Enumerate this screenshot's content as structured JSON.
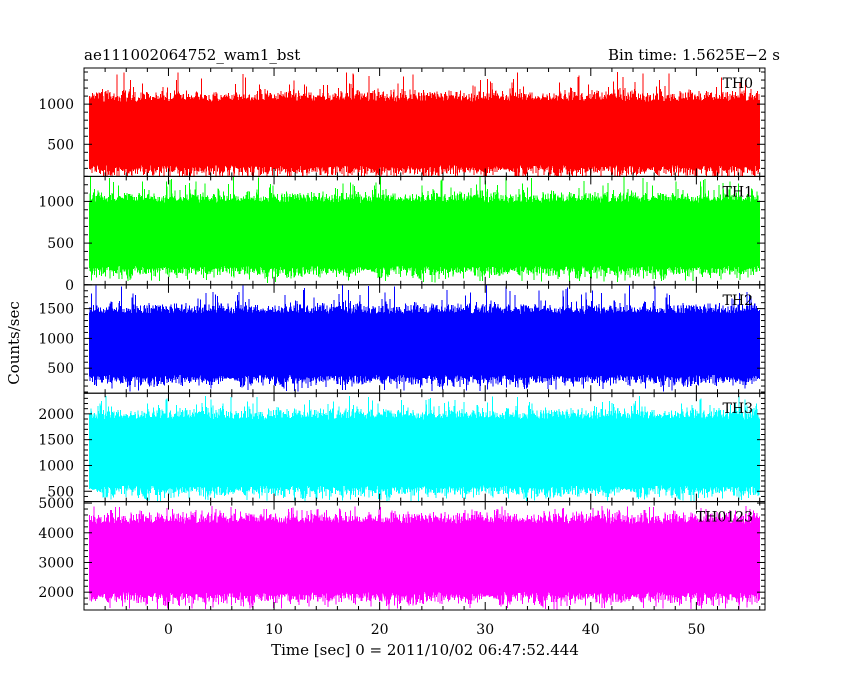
{
  "header": {
    "title": "ae111002064752_wam1_bst",
    "bin_time": "Bin time: 1.5625E−2 s"
  },
  "axes": {
    "xlabel": "Time [sec] 0 = 2011/10/02 06:47:52.444",
    "ylabel": "Counts/sec",
    "x_ticks": [
      0,
      10,
      20,
      30,
      40,
      50
    ],
    "xlim": [
      -8,
      56.5
    ],
    "data_x_range": [
      -7.5,
      56
    ]
  },
  "chart_data": [
    {
      "type": "area",
      "panel": "TH0",
      "series": [
        {
          "name": "TH0",
          "color": "#ff0000",
          "mean": 650,
          "band": [
            170,
            1100
          ],
          "min": 50,
          "max": 1400
        }
      ],
      "ylim": [
        100,
        1450
      ],
      "y_ticks": [
        500,
        1000
      ],
      "grid": false
    },
    {
      "type": "area",
      "panel": "TH1",
      "series": [
        {
          "name": "TH1",
          "color": "#00ff00",
          "mean": 620,
          "band": [
            160,
            1050
          ],
          "min": 20,
          "max": 1300
        }
      ],
      "ylim": [
        0,
        1300
      ],
      "y_ticks": [
        0,
        500,
        1000
      ],
      "grid": false
    },
    {
      "type": "area",
      "panel": "TH2",
      "series": [
        {
          "name": "TH2",
          "color": "#0000ff",
          "mean": 800,
          "band": [
            300,
            1500
          ],
          "min": 100,
          "max": 1900
        }
      ],
      "ylim": [
        80,
        1900
      ],
      "y_ticks": [
        500,
        1000,
        1500
      ],
      "grid": false
    },
    {
      "type": "area",
      "panel": "TH3",
      "series": [
        {
          "name": "TH3",
          "color": "#00ffff",
          "mean": 1200,
          "band": [
            500,
            2000
          ],
          "min": 300,
          "max": 2350
        }
      ],
      "ylim": [
        300,
        2400
      ],
      "y_ticks": [
        500,
        1000,
        1500,
        2000
      ],
      "grid": false
    },
    {
      "type": "area",
      "panel": "TH0123",
      "series": [
        {
          "name": "TH0123",
          "color": "#ff00ff",
          "mean": 3200,
          "band": [
            1800,
            4500
          ],
          "min": 1400,
          "max": 4900
        }
      ],
      "ylim": [
        1400,
        5050
      ],
      "y_ticks": [
        2000,
        3000,
        4000,
        5000
      ],
      "grid": false
    }
  ]
}
